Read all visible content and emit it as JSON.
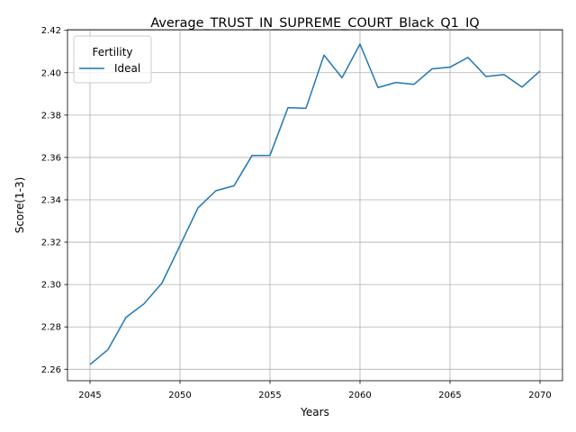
{
  "chart_data": {
    "type": "line",
    "title": "Average_TRUST_IN_SUPREME_COURT_Black_Q1_IQ",
    "xlabel": "Years",
    "ylabel": "Score(1-3)",
    "xlim": [
      2043.75,
      2071.25
    ],
    "ylim": [
      2.2546,
      2.4203
    ],
    "xticks": [
      2045,
      2050,
      2055,
      2060,
      2065,
      2070
    ],
    "xtick_labels": [
      "2045",
      "2050",
      "2055",
      "2060",
      "2065",
      "2070"
    ],
    "yticks": [
      2.26,
      2.28,
      2.3,
      2.32,
      2.34,
      2.36,
      2.38,
      2.4,
      2.42
    ],
    "ytick_labels": [
      "2.26",
      "2.28",
      "2.30",
      "2.32",
      "2.34",
      "2.36",
      "2.38",
      "2.40",
      "2.42"
    ],
    "grid": true,
    "legend": {
      "title": "Fertility",
      "placement": "top-left"
    },
    "series": [
      {
        "name": "Ideal",
        "color": "#1f77b4",
        "x": [
          2045,
          2046,
          2047,
          2048,
          2049,
          2050,
          2051,
          2052,
          2053,
          2054,
          2055,
          2056,
          2057,
          2058,
          2059,
          2060,
          2061,
          2062,
          2063,
          2064,
          2065,
          2066,
          2067,
          2068,
          2069,
          2070
        ],
        "y": [
          2.2622,
          2.2693,
          2.2845,
          2.2909,
          2.3007,
          2.3184,
          2.3362,
          2.3443,
          2.3466,
          2.3609,
          2.361,
          2.3835,
          2.3832,
          2.4083,
          2.3976,
          2.4135,
          2.393,
          2.3954,
          2.3945,
          2.4018,
          2.4026,
          2.4072,
          2.3982,
          2.3991,
          2.3932,
          2.4008
        ]
      }
    ]
  }
}
